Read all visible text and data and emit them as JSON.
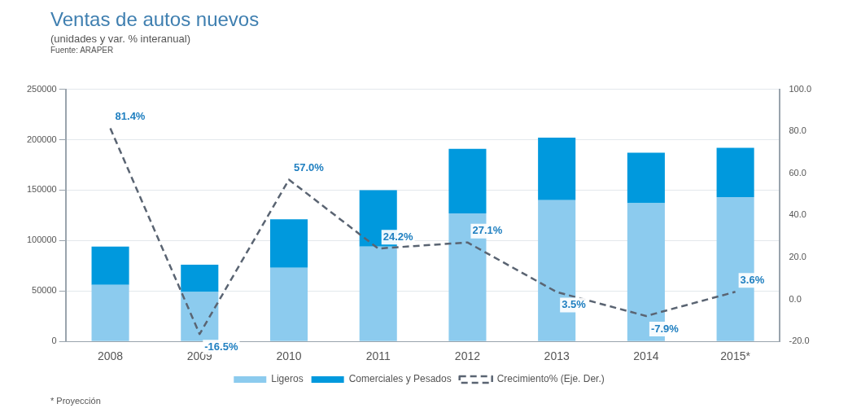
{
  "chart_data": {
    "type": "bar",
    "title": "Ventas de autos nuevos",
    "subtitle": "(unidades y var. % interanual)",
    "annotations": [
      "Fuente: ARAPER",
      "* Proyección"
    ],
    "categories": [
      "2008",
      "2009",
      "2010",
      "2011",
      "2012",
      "2013",
      "2014",
      "2015*"
    ],
    "stacked": true,
    "series": [
      {
        "name": "Ligeros",
        "color": "#8ccbee",
        "values": [
          56000,
          49000,
          73000,
          94000,
          127000,
          140000,
          137000,
          143000
        ]
      },
      {
        "name": "Comerciales y Pesados",
        "color": "#0099dd",
        "values": [
          38000,
          27000,
          48000,
          56000,
          64000,
          62000,
          50000,
          49000
        ]
      },
      {
        "name": "Crecimiento% (Eje. Der.)",
        "type": "line",
        "axis": "y2",
        "color": "#5a6472",
        "line_style": "dashed",
        "marker": "none",
        "values": [
          81.4,
          -16.5,
          57.0,
          24.2,
          27.1,
          3.5,
          -7.9,
          3.6
        ],
        "value_labels": [
          "81.4%",
          "-16.5%",
          "57.0%",
          "24.2%",
          "27.1%",
          "3.5%",
          "-7.9%",
          "3.6%"
        ]
      }
    ],
    "ylim": [
      0,
      250000
    ],
    "yticks": [
      0,
      50000,
      100000,
      150000,
      200000,
      250000
    ],
    "y2lim": [
      -20,
      100
    ],
    "y2ticks": [
      {
        "value": -20,
        "label": "-20.0"
      },
      {
        "value": 0,
        "label": "0.0"
      },
      {
        "value": 20,
        "label": "20.0"
      },
      {
        "value": 40,
        "label": "40.0"
      },
      {
        "value": 60,
        "label": "60.0"
      },
      {
        "value": 80,
        "label": "80.0"
      },
      {
        "value": 100,
        "label": "100.0"
      }
    ],
    "grid": "y",
    "legend": "bottom"
  }
}
